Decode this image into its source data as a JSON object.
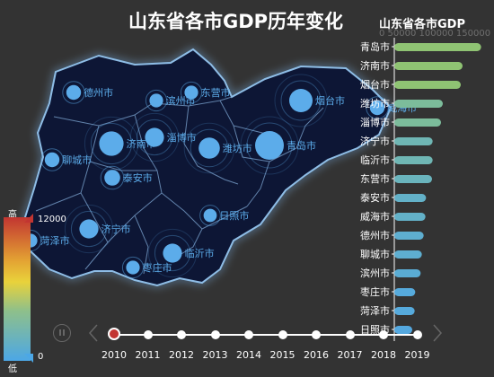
{
  "header": {
    "title": "山东省各市GDP历年变化",
    "subtitle": "山东省各市GDP",
    "axis_faint": "0 50000 100000 150000"
  },
  "visual_map": {
    "high_label": "高",
    "low_label": "低",
    "max": "12000",
    "min": "0",
    "colors": [
      "#c23531",
      "#e3a233",
      "#e9d23b",
      "#8fc08a",
      "#4ca7e6"
    ]
  },
  "timeline": {
    "years": [
      "2010",
      "2011",
      "2012",
      "2013",
      "2014",
      "2015",
      "2016",
      "2017",
      "2018",
      "2019"
    ],
    "current": "2010"
  },
  "map": {
    "bubble_color": "#5cacea",
    "cities": [
      {
        "name": "德州市",
        "size": 0.35
      },
      {
        "name": "滨州市",
        "size": 0.3
      },
      {
        "name": "东营市",
        "size": 0.3
      },
      {
        "name": "烟台市",
        "size": 0.75
      },
      {
        "name": "威海市",
        "size": 0.35
      },
      {
        "name": "济南市",
        "size": 0.8
      },
      {
        "name": "淄博市",
        "size": 0.55
      },
      {
        "name": "潍坊市",
        "size": 0.65
      },
      {
        "name": "青岛市",
        "size": 1.0
      },
      {
        "name": "聊城市",
        "size": 0.35
      },
      {
        "name": "泰安市",
        "size": 0.4
      },
      {
        "name": "日照市",
        "size": 0.28
      },
      {
        "name": "菏泽市",
        "size": 0.3
      },
      {
        "name": "济宁市",
        "size": 0.55
      },
      {
        "name": "临沂市",
        "size": 0.55
      },
      {
        "name": "枣庄市",
        "size": 0.3
      }
    ]
  },
  "chart_data": {
    "type": "bar",
    "title": "山东省各市GDP",
    "orientation": "horizontal",
    "year": "2010",
    "categories": [
      "青岛市",
      "济南市",
      "烟台市",
      "潍坊市",
      "淄博市",
      "济宁市",
      "临沂市",
      "东营市",
      "泰安市",
      "威海市",
      "德州市",
      "聊城市",
      "滨州市",
      "枣庄市",
      "菏泽市",
      "日照市"
    ],
    "values": [
      145000,
      114000,
      111000,
      81000,
      78000,
      64000,
      64000,
      63000,
      53000,
      52000,
      49000,
      46000,
      44000,
      35000,
      34000,
      30000
    ],
    "xlim": [
      0,
      150000
    ],
    "xticks": [
      "0",
      "50000",
      "100000",
      "150000"
    ],
    "colors": [
      "#8fc373",
      "#8fc373",
      "#8fc373",
      "#7cbc9b",
      "#7cbc9b",
      "#6fb6b4",
      "#6fb6b4",
      "#6ab4bd",
      "#63b1c8",
      "#63b1c8",
      "#5eaed0",
      "#5eaed0",
      "#5aacd4",
      "#56aadc",
      "#56aadc",
      "#54a8df"
    ]
  }
}
